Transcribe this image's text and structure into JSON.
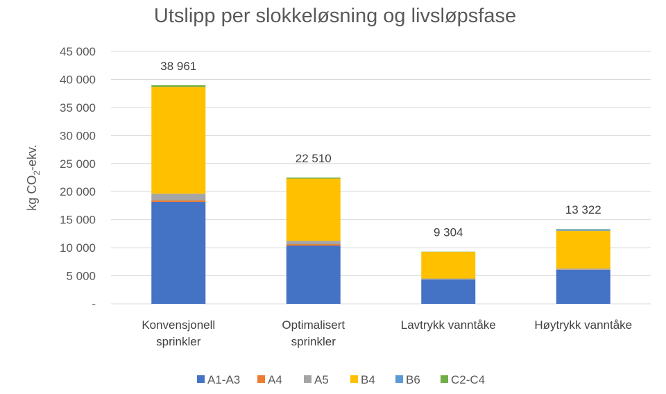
{
  "chart_data": {
    "type": "bar",
    "stacked": true,
    "title": "Utslipp per slokkeløsning og livsløpsfase",
    "xlabel": "",
    "ylabel": "kg CO2-ekv.",
    "ylabel_parts": {
      "pre": "kg CO",
      "sub": "2",
      "post": "-ekv."
    },
    "ylim": [
      0,
      45000
    ],
    "yticks": [
      0,
      5000,
      10000,
      15000,
      20000,
      25000,
      30000,
      35000,
      40000,
      45000
    ],
    "ytick_labels": [
      "-",
      "5 000",
      "10 000",
      "15 000",
      "20 000",
      "25 000",
      "30 000",
      "35 000",
      "40 000",
      "45 000"
    ],
    "grid": true,
    "legend_position": "bottom",
    "categories": [
      [
        "Konvensjonell",
        "sprinkler"
      ],
      [
        "Optimalisert",
        "sprinkler"
      ],
      [
        "Lavtrykk vanntåke"
      ],
      [
        "Høytrykk vanntåke"
      ]
    ],
    "totals": [
      38961,
      22510,
      9304,
      13322
    ],
    "total_labels": [
      "38 961",
      "22 510",
      "9 304",
      "13 322"
    ],
    "series": [
      {
        "name": "A1-A3",
        "color": "#4472c4",
        "values": [
          18170,
          10380,
          4330,
          6060
        ]
      },
      {
        "name": "A4",
        "color": "#ed7d31",
        "values": [
          250,
          250,
          30,
          30
        ]
      },
      {
        "name": "A5",
        "color": "#a5a5a5",
        "values": [
          1200,
          600,
          150,
          200
        ]
      },
      {
        "name": "B4",
        "color": "#ffc000",
        "values": [
          19041,
          11080,
          4744,
          6732
        ]
      },
      {
        "name": "B6",
        "color": "#5b9bd5",
        "values": [
          0,
          0,
          0,
          250
        ]
      },
      {
        "name": "C2-C4",
        "color": "#70ad47",
        "values": [
          300,
          200,
          50,
          50
        ]
      }
    ]
  }
}
